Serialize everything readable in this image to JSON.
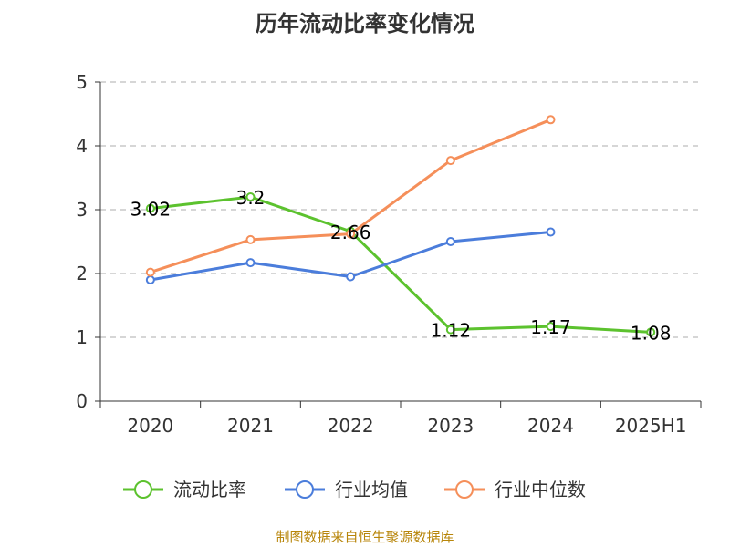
{
  "chart_data": {
    "type": "line",
    "title": "历年流动比率变化情况",
    "categories": [
      "2020",
      "2021",
      "2022",
      "2023",
      "2024",
      "2025H1"
    ],
    "ylim": [
      0,
      5
    ],
    "yticks": [
      "0",
      "1",
      "2",
      "3",
      "4",
      "5"
    ],
    "grid": true,
    "legend_position": "bottom",
    "series": [
      {
        "name": "流动比率",
        "color": "#5cc22e",
        "values": [
          3.02,
          3.2,
          2.66,
          1.12,
          1.17,
          1.08
        ],
        "labels": [
          "3.02",
          "3.2",
          "2.66",
          "1.12",
          "1.17",
          "1.08"
        ]
      },
      {
        "name": "行业均值",
        "color": "#4b7ddb",
        "values": [
          1.9,
          2.17,
          1.95,
          2.5,
          2.65,
          null
        ],
        "labels": []
      },
      {
        "name": "行业中位数",
        "color": "#f58f5a",
        "values": [
          2.02,
          2.53,
          2.62,
          3.77,
          4.41,
          null
        ],
        "labels": []
      }
    ]
  },
  "source": "制图数据来自恒生聚源数据库"
}
